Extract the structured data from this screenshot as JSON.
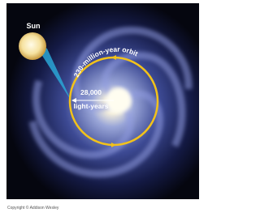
{
  "sun_label": "Sun",
  "orbit_label": "230-million-year orbit",
  "distance_value": "28,000",
  "distance_unit": "light-years",
  "copyright": "Copyright © Addison Wesley"
}
